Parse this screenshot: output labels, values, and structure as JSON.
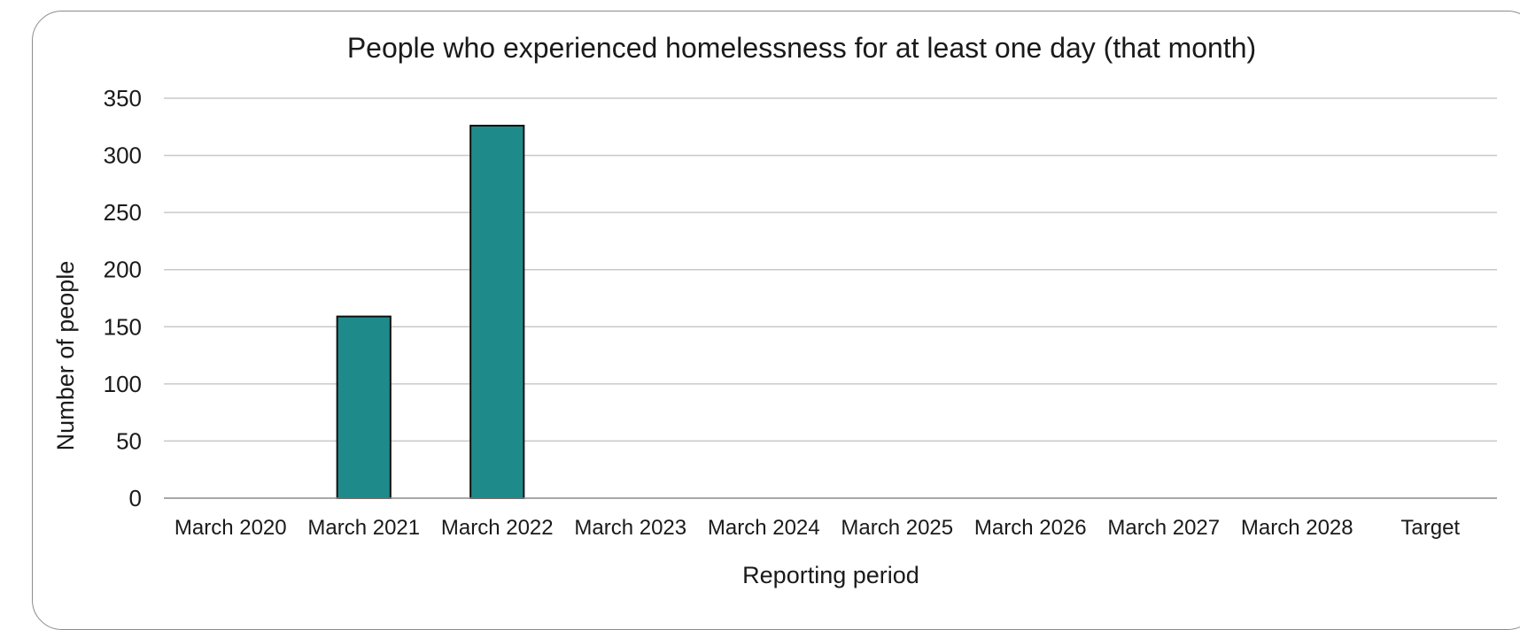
{
  "chart_data": {
    "type": "bar",
    "title": "People who experienced homelessness for at least one day (that month)",
    "xlabel": "Reporting period",
    "ylabel": "Number of people",
    "categories": [
      "March 2020",
      "March 2021",
      "March 2022",
      "March 2023",
      "March 2024",
      "March 2025",
      "March 2026",
      "March 2027",
      "March 2028",
      "Target"
    ],
    "values": [
      null,
      159,
      326,
      null,
      null,
      null,
      null,
      null,
      null,
      null
    ],
    "ylim": [
      0,
      350
    ],
    "yticks": [
      "0",
      "50",
      "100",
      "150",
      "200",
      "250",
      "300",
      "350"
    ],
    "grid": true,
    "legend": "none",
    "bar_color": "#1f8a8a",
    "bar_edge_color": "#111111"
  }
}
